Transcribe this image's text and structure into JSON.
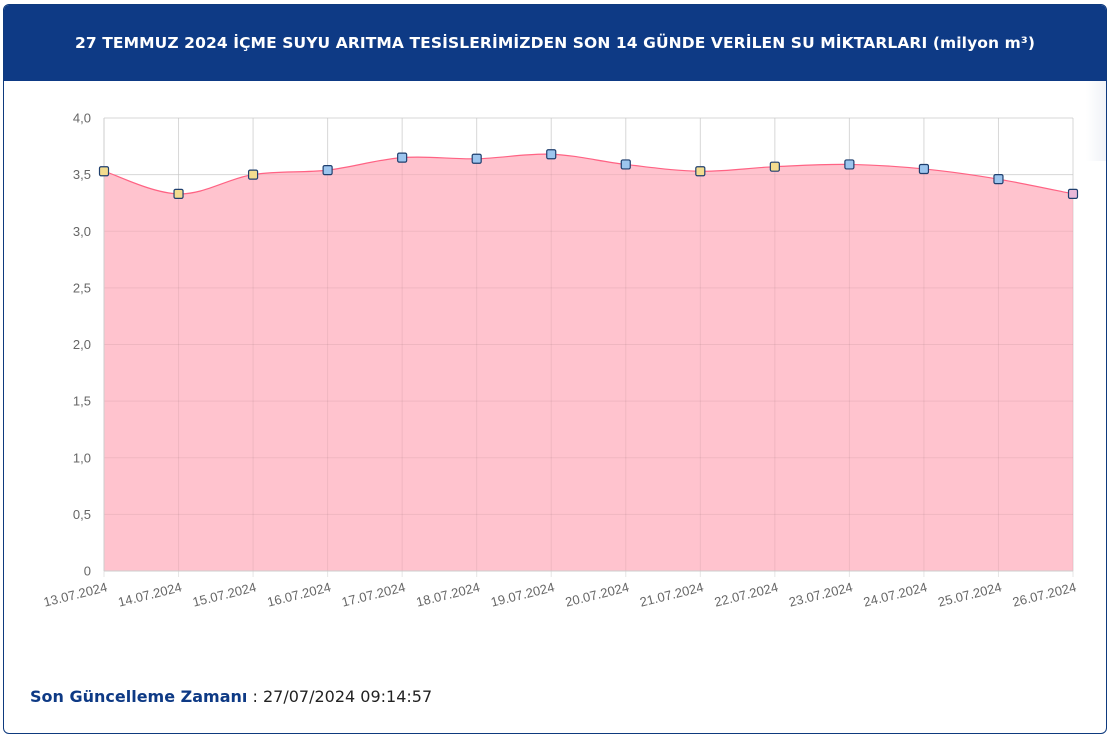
{
  "header": {
    "title": "27 TEMMUZ 2024 İÇME SUYU ARITMA TESİSLERİMİZDEN SON 14 GÜNDE VERİLEN SU MİKTARLARI (milyon m³)"
  },
  "footer": {
    "label": "Son Güncelleme Zamanı",
    "separator": " : ",
    "value": "27/07/2024 09:14:57"
  },
  "colors": {
    "header_bg": "#0e3a85",
    "area_fill": "#ffc0cb",
    "line": "#ff6384",
    "grid": "#e5e5e5"
  },
  "chart_data": {
    "type": "area",
    "title": "27 TEMMUZ 2024 İÇME SUYU ARITMA TESİSLERİMİZDEN SON 14 GÜNDE VERİLEN SU MİKTARLARI (milyon m³)",
    "xlabel": "",
    "ylabel": "",
    "categories": [
      "13.07.2024",
      "14.07.2024",
      "15.07.2024",
      "16.07.2024",
      "17.07.2024",
      "18.07.2024",
      "19.07.2024",
      "20.07.2024",
      "21.07.2024",
      "22.07.2024",
      "23.07.2024",
      "24.07.2024",
      "25.07.2024",
      "26.07.2024"
    ],
    "values": [
      3.53,
      3.33,
      3.5,
      3.54,
      3.65,
      3.64,
      3.68,
      3.59,
      3.53,
      3.57,
      3.59,
      3.55,
      3.46,
      3.33
    ],
    "point_colors": [
      "#f3dc8f",
      "#f3dc8f",
      "#f3dc8f",
      "#9cc5ee",
      "#9cc5ee",
      "#9cc5ee",
      "#9cc5ee",
      "#9cc5ee",
      "#f3dc8f",
      "#f3dc8f",
      "#9cc5ee",
      "#9cc5ee",
      "#9cc5ee",
      "#e8b8d8"
    ],
    "ylim": [
      0,
      4
    ],
    "yticks": [
      "0",
      "0,5",
      "1,0",
      "1,5",
      "2,0",
      "2,5",
      "3,0",
      "3,5",
      "4,0"
    ],
    "ytick_values": [
      0,
      0.5,
      1.0,
      1.5,
      2.0,
      2.5,
      3.0,
      3.5,
      4.0
    ],
    "grid": true,
    "legend": "none"
  }
}
